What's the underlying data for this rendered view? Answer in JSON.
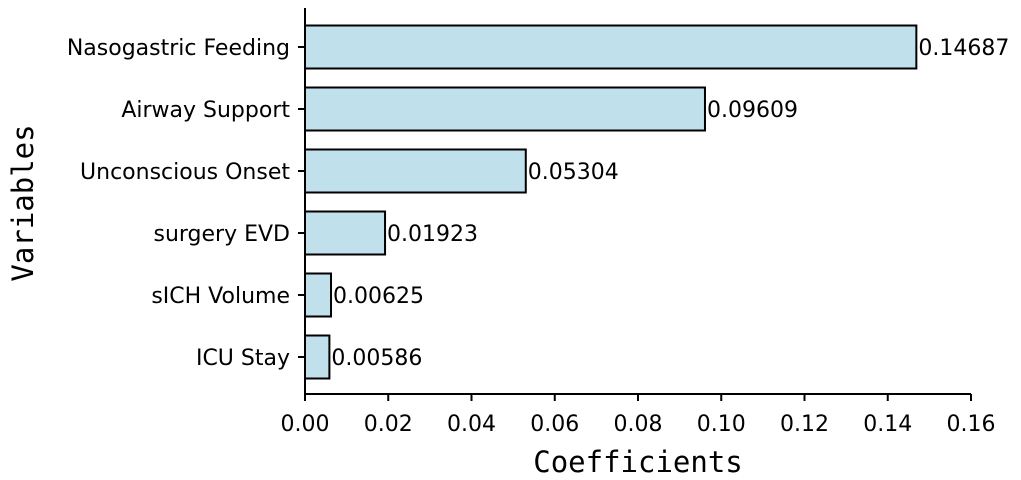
{
  "chart_data": {
    "type": "bar",
    "orientation": "horizontal",
    "categories": [
      "Nasogastric Feeding",
      "Airway Support",
      "Unconscious Onset",
      "surgery EVD",
      "sICH Volume",
      "ICU Stay"
    ],
    "values": [
      0.14687,
      0.09609,
      0.05304,
      0.01923,
      0.00625,
      0.00586
    ],
    "value_labels": [
      "0.14687",
      "0.09609",
      "0.05304",
      "0.01923",
      "0.00625",
      "0.00586"
    ],
    "xlabel": "Coefficients",
    "ylabel": "Variables",
    "xlim": [
      0,
      0.16
    ],
    "xticks": [
      "0.00",
      "0.02",
      "0.04",
      "0.06",
      "0.08",
      "0.10",
      "0.12",
      "0.14",
      "0.16"
    ],
    "grid": false,
    "legend": "none",
    "colors": {
      "bar_fill": "#c0e0ec",
      "bar_edge": "#000000"
    }
  }
}
